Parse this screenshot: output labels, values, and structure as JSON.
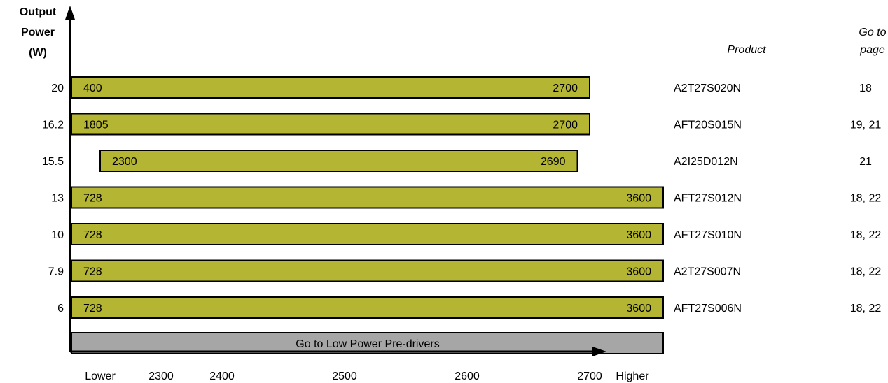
{
  "chart_data": {
    "type": "bar",
    "ylabel_lines": [
      "Output",
      "Power",
      "(W)"
    ],
    "product_header": "Product",
    "page_header_lines": [
      "Go to",
      "page"
    ],
    "bar_color": "#b5b534",
    "footer_bar_color": "#a6a6a6",
    "footer_bar_label": "Go to Low Power Pre-drivers",
    "x_ticks": [
      {
        "label": "Lower",
        "value": 2180
      },
      {
        "label": "2300",
        "value": 2300
      },
      {
        "label": "2400",
        "value": 2400
      },
      {
        "label": "2500",
        "value": 2500
      },
      {
        "label": "2600",
        "value": 2600
      },
      {
        "label": "2700",
        "value": 2700
      },
      {
        "label": "Higher",
        "value": 2795
      }
    ],
    "series": [
      {
        "power": "20",
        "start_label": "400",
        "end_label": "2700",
        "start": 2130,
        "end": 2700,
        "product": "A2T27S020N",
        "page": "18"
      },
      {
        "power": "16.2",
        "start_label": "1805",
        "end_label": "2700",
        "start": 2130,
        "end": 2700,
        "product": "AFT20S015N",
        "page": "19, 21"
      },
      {
        "power": "15.5",
        "start_label": "2300",
        "end_label": "2690",
        "start": 2180,
        "end": 2690,
        "product": "A2I25D012N",
        "page": "21"
      },
      {
        "power": "13",
        "start_label": "728",
        "end_label": "3600",
        "start": 2130,
        "end": 2900,
        "product": "AFT27S012N",
        "page": "18, 22"
      },
      {
        "power": "10",
        "start_label": "728",
        "end_label": "3600",
        "start": 2130,
        "end": 2900,
        "product": "AFT27S010N",
        "page": "18, 22"
      },
      {
        "power": "7.9",
        "start_label": "728",
        "end_label": "3600",
        "start": 2130,
        "end": 2900,
        "product": "A2T27S007N",
        "page": "18, 22"
      },
      {
        "power": "6",
        "start_label": "728",
        "end_label": "3600",
        "start": 2130,
        "end": 2900,
        "product": "AFT27S006N",
        "page": "18, 22"
      }
    ]
  }
}
